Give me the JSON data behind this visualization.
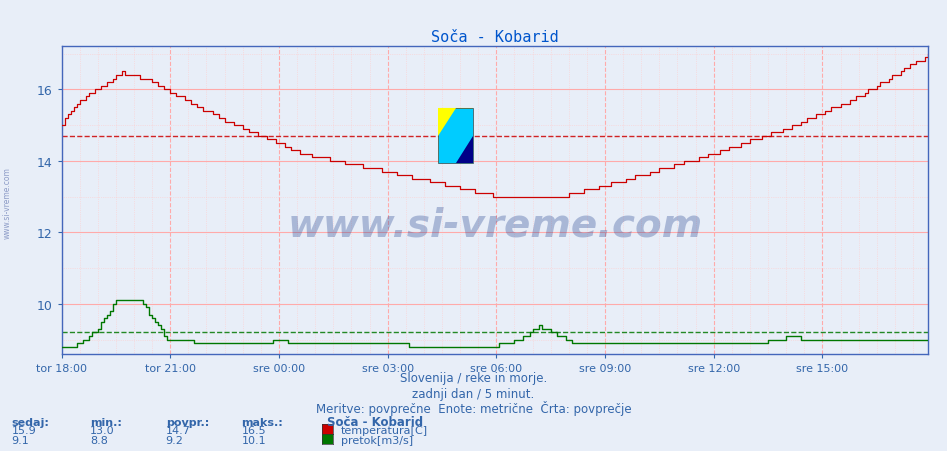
{
  "title": "Soča - Kobarid",
  "title_color": "#0055cc",
  "background_color": "#e8eef8",
  "plot_bg_color": "#e8eef8",
  "tick_color": "#3366aa",
  "temp_color": "#cc0000",
  "flow_color": "#007700",
  "avg_temp_color": "#cc0000",
  "avg_flow_color": "#007700",
  "temp_avg": 14.7,
  "flow_avg": 9.2,
  "temp_min": 13.0,
  "temp_max": 16.5,
  "temp_curr": 15.9,
  "temp_povpr": 14.7,
  "flow_min": 8.8,
  "flow_max": 10.1,
  "flow_curr": 9.1,
  "flow_povpr": 9.2,
  "ylim": [
    8.6,
    17.2
  ],
  "yticks": [
    10,
    12,
    14,
    16
  ],
  "n_points": 288,
  "watermark": "www.si-vreme.com",
  "watermark_color": "#1a3a8a",
  "subtitle1": "Slovenija / reke in morje.",
  "subtitle2": "zadnji dan / 5 minut.",
  "subtitle3": "Meritve: povprečne  Enote: metrične  Črta: povprečje",
  "subtitle_color": "#3366aa",
  "legend_title": "Soča - Kobarid",
  "label_sedaj": "sedaj:",
  "label_min": "min.:",
  "label_povpr": "povpr.:",
  "label_maks": "maks.:",
  "xtick_labels": [
    "tor 18:00",
    "tor 21:00",
    "sre 00:00",
    "sre 03:00",
    "sre 06:00",
    "sre 09:00",
    "sre 12:00",
    "sre 15:00"
  ],
  "xtick_positions": [
    0,
    36,
    72,
    108,
    144,
    180,
    216,
    252
  ],
  "vgrid_color": "#ddaaaa",
  "hgrid_color": "#ddaaaa"
}
